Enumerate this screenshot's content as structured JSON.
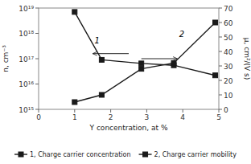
{
  "chart_data": {
    "type": "line",
    "xlabel": "Y concentration, at %",
    "ylabel": "n, cm⁻³",
    "y2label": "μ, cm²/(V s)",
    "x": [
      1,
      1.75,
      2.85,
      3.75,
      4.9
    ],
    "series": [
      {
        "name": "1, Charge carrier concentration",
        "color": "#1a1a1a",
        "marker": "square",
        "line_style": "solid",
        "values": [
          7e+18,
          9e+16,
          6.5e+16,
          5.5e+16,
          2.2e+16
        ]
      },
      {
        "name": "2, Charge carrier mobility",
        "color": "#1a1a1a",
        "marker": "square",
        "line_style": "solid",
        "axis": "y2",
        "values": [
          5,
          10,
          28,
          32,
          60
        ]
      }
    ],
    "xlim": [
      0,
      5
    ],
    "xticks": [
      0,
      1,
      2,
      3,
      4,
      5
    ],
    "log": "y",
    "ylim": [
      1000000000000000.0,
      1e+19
    ],
    "yticks": [
      {
        "value": 1000000000000000.0,
        "label": "10¹⁵"
      },
      {
        "value": 1e+16,
        "label": "10¹⁶"
      },
      {
        "value": 1e+17,
        "label": "10¹⁷"
      },
      {
        "value": 1e+18,
        "label": "10¹⁸"
      },
      {
        "value": 1e+19,
        "label": "10¹⁹"
      }
    ],
    "y2lim": [
      0,
      70
    ],
    "y2ticks": [
      0,
      10,
      20,
      30,
      40,
      50,
      60,
      70
    ],
    "legend": "bottom",
    "annotations": [
      {
        "text": "1",
        "x": 1.55,
        "y": 4e+17
      },
      {
        "text": "2",
        "x": 3.9,
        "y": 50,
        "axis": "y2"
      }
    ]
  }
}
